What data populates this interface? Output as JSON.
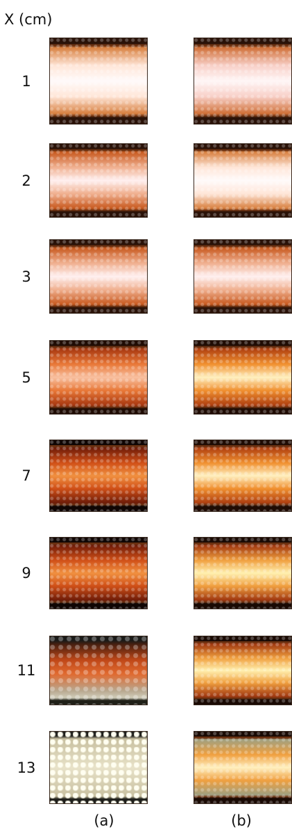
{
  "header": {
    "axis_label": "X (cm)"
  },
  "rows": [
    {
      "label": "1"
    },
    {
      "label": "2"
    },
    {
      "label": "3"
    },
    {
      "label": "5"
    },
    {
      "label": "7"
    },
    {
      "label": "9"
    },
    {
      "label": "11"
    },
    {
      "label": "13"
    }
  ],
  "columns": [
    {
      "label": "(a)"
    },
    {
      "label": "(b)"
    }
  ]
}
